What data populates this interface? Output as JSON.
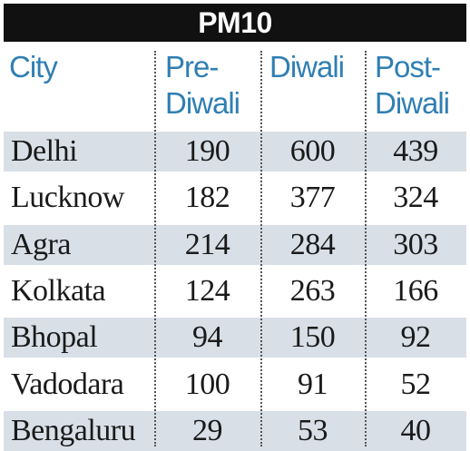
{
  "title": "PM10",
  "colors": {
    "title_bg": "#111111",
    "title_text": "#ffffff",
    "header_text": "#2f7fb3",
    "row_shade": "#d9dfe6"
  },
  "headers": {
    "city": "City",
    "pre_line1": "Pre-",
    "pre_line2": "Diwali",
    "diwali": "Diwali",
    "post_line1": "Post-",
    "post_line2": "Diwali"
  },
  "rows": [
    {
      "city": "Delhi",
      "pre": "190",
      "diwali": "600",
      "post": "439"
    },
    {
      "city": "Lucknow",
      "pre": "182",
      "diwali": "377",
      "post": "324"
    },
    {
      "city": "Agra",
      "pre": "214",
      "diwali": "284",
      "post": "303"
    },
    {
      "city": "Kolkata",
      "pre": "124",
      "diwali": "263",
      "post": "166"
    },
    {
      "city": "Bhopal",
      "pre": "94",
      "diwali": "150",
      "post": "92"
    },
    {
      "city": "Vadodara",
      "pre": "100",
      "diwali": "91",
      "post": "52"
    },
    {
      "city": "Bengaluru",
      "pre": "29",
      "diwali": "53",
      "post": "40"
    }
  ],
  "chart_data": {
    "type": "table",
    "title": "PM10",
    "columns": [
      "City",
      "Pre-Diwali",
      "Diwali",
      "Post-Diwali"
    ],
    "categories": [
      "Delhi",
      "Lucknow",
      "Agra",
      "Kolkata",
      "Bhopal",
      "Vadodara",
      "Bengaluru"
    ],
    "series": [
      {
        "name": "Pre-Diwali",
        "values": [
          190,
          182,
          214,
          124,
          94,
          100,
          29
        ]
      },
      {
        "name": "Diwali",
        "values": [
          600,
          377,
          284,
          263,
          150,
          91,
          53
        ]
      },
      {
        "name": "Post-Diwali",
        "values": [
          439,
          324,
          303,
          166,
          92,
          52,
          40
        ]
      }
    ]
  }
}
